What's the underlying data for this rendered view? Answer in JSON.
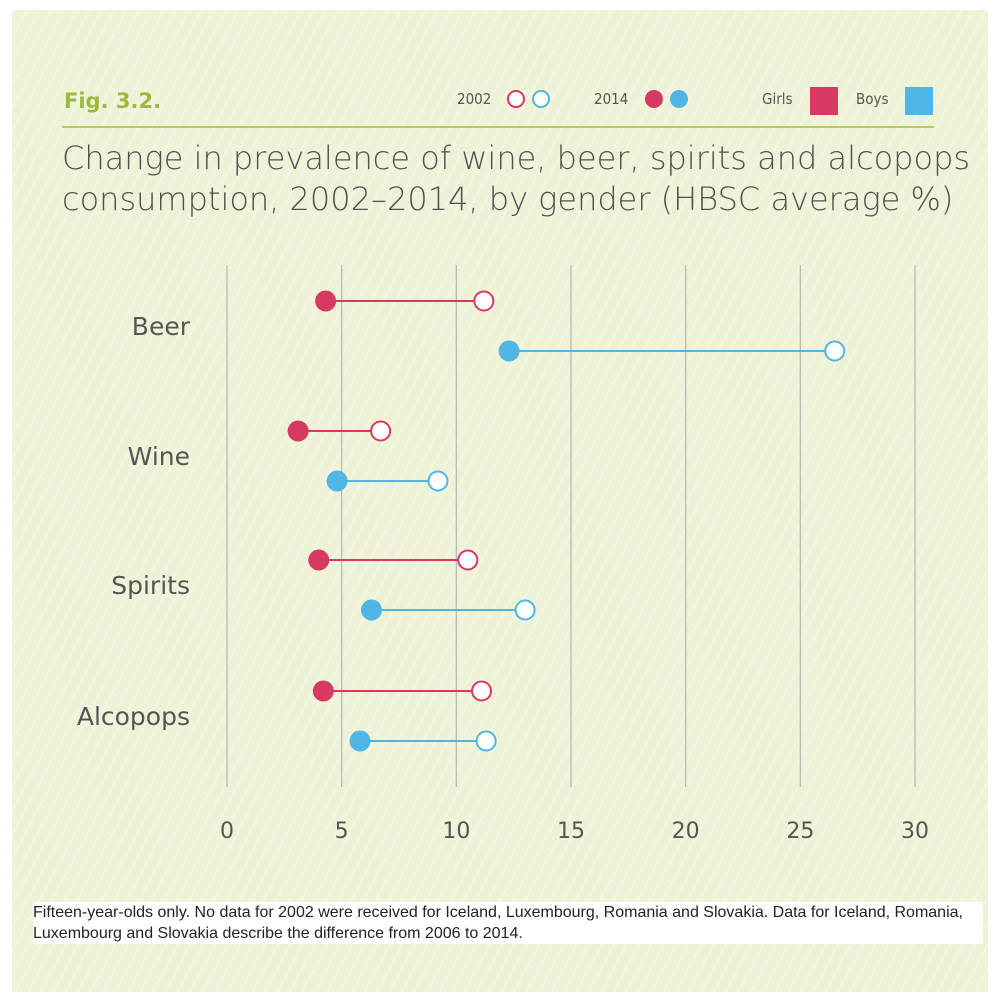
{
  "figure": {
    "label": "Fig. 3.2.",
    "title_line1": "Change in prevalence of wine, beer, spirits and alcopops",
    "title_line2": "consumption, 2002–2014, by gender (HBSC average %)",
    "footnote": "Fifteen-year-olds only. No data for 2002 were received for Iceland, Luxembourg, Romania and Slovakia. Data for Iceland, Romania, Luxembourg and Slovakia describe the difference from 2006 to 2014."
  },
  "legend": {
    "year_open": "2002",
    "year_filled": "2014",
    "girls": "Girls",
    "boys": "Boys"
  },
  "colors": {
    "girls": "#d63a63",
    "boys": "#4fb6e6",
    "grid": "#b8b8b8",
    "text": "#555555",
    "accent": "#9cba3c"
  },
  "chart_data": {
    "type": "dumbbell",
    "categories": [
      "Beer",
      "Wine",
      "Spirits",
      "Alcopops"
    ],
    "xlim": [
      0,
      30
    ],
    "xticks": [
      0,
      5,
      10,
      15,
      20,
      25,
      30
    ],
    "grid": true,
    "legend_position": "top-right",
    "series": [
      {
        "name": "Girls",
        "values_2002": [
          11.2,
          6.7,
          10.5,
          11.1
        ],
        "values_2014": [
          4.3,
          3.1,
          4.0,
          4.2
        ]
      },
      {
        "name": "Boys",
        "values_2002": [
          26.5,
          9.2,
          13.0,
          11.3
        ],
        "values_2014": [
          12.3,
          4.8,
          6.3,
          5.8
        ]
      }
    ]
  }
}
